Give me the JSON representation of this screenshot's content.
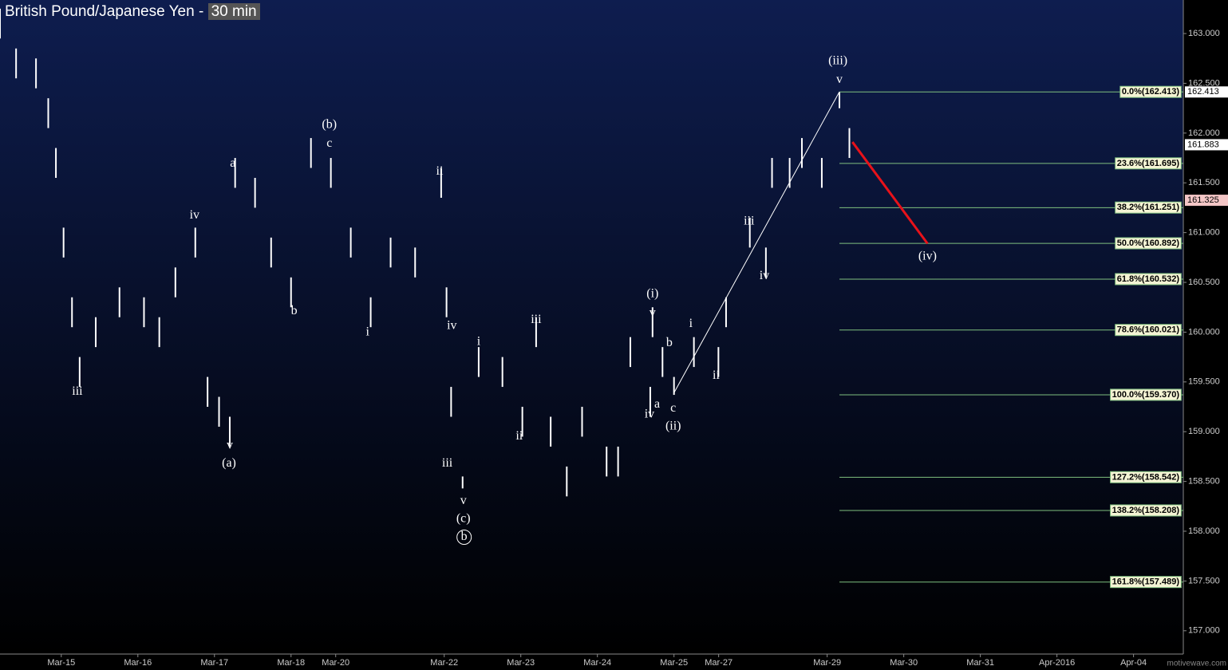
{
  "chart_data": {
    "type": "ohlc",
    "title": "British Pound/Japanese Yen",
    "separator": "-",
    "interval": "30 min",
    "color": "#ffffff",
    "x": [
      0.2,
      0.41,
      0.67,
      0.83,
      0.93,
      1.03,
      1.14,
      1.24,
      1.45,
      1.76,
      2.08,
      2.28,
      2.49,
      2.75,
      2.91,
      3.06,
      3.2,
      3.27,
      3.53,
      3.74,
      4.0,
      4.26,
      4.52,
      4.78,
      5.04,
      5.3,
      5.62,
      5.96,
      6.03,
      6.09,
      6.24,
      6.45,
      6.76,
      7.02,
      7.2,
      7.39,
      7.6,
      7.8,
      8.12,
      8.27,
      8.43,
      8.69,
      8.72,
      8.85,
      9.0,
      9.26,
      9.58,
      9.68,
      9.99,
      10.2,
      10.28,
      10.51,
      10.67,
      10.93,
      11.16,
      11.29
    ],
    "high": [
      163.25,
      162.85,
      162.75,
      162.35,
      161.85,
      161.05,
      160.35,
      159.75,
      160.15,
      160.45,
      160.35,
      160.15,
      160.65,
      161.05,
      159.55,
      159.35,
      159.15,
      161.75,
      161.55,
      160.95,
      160.55,
      161.95,
      161.75,
      161.05,
      160.35,
      160.95,
      160.85,
      161.65,
      160.45,
      159.45,
      158.55,
      159.85,
      159.75,
      159.25,
      160.15,
      159.15,
      158.65,
      159.25,
      158.85,
      158.85,
      159.95,
      159.45,
      160.25,
      159.85,
      159.55,
      159.95,
      159.85,
      160.35,
      161.15,
      160.85,
      161.75,
      161.75,
      161.95,
      161.75,
      162.41,
      162.05
    ],
    "low": [
      162.95,
      162.55,
      162.45,
      162.05,
      161.55,
      160.75,
      160.05,
      159.45,
      159.85,
      160.15,
      160.05,
      159.85,
      160.35,
      160.75,
      159.25,
      159.05,
      158.85,
      161.45,
      161.25,
      160.65,
      160.25,
      161.65,
      161.45,
      160.75,
      160.05,
      160.65,
      160.55,
      161.35,
      160.15,
      159.15,
      158.43,
      159.55,
      159.45,
      158.95,
      159.85,
      158.85,
      158.35,
      158.95,
      158.55,
      158.55,
      159.65,
      159.15,
      159.95,
      159.55,
      159.37,
      159.65,
      159.55,
      160.05,
      160.85,
      160.55,
      161.45,
      161.45,
      161.65,
      161.45,
      162.25,
      161.75
    ],
    "xlim": [
      0.2,
      15.65
    ],
    "xticks": [
      {
        "value": 1,
        "label": "Mar-15"
      },
      {
        "value": 2,
        "label": "Mar-16"
      },
      {
        "value": 3,
        "label": "Mar-17"
      },
      {
        "value": 4,
        "label": "Mar-18"
      },
      {
        "value": 4.583,
        "label": "Mar-20"
      },
      {
        "value": 6,
        "label": "Mar-22"
      },
      {
        "value": 7,
        "label": "Mar-23"
      },
      {
        "value": 8,
        "label": "Mar-24"
      },
      {
        "value": 9,
        "label": "Mar-25"
      },
      {
        "value": 9.583,
        "label": "Mar-27"
      },
      {
        "value": 11,
        "label": "Mar-29"
      },
      {
        "value": 12,
        "label": "Mar-30"
      },
      {
        "value": 13,
        "label": "Mar-31"
      },
      {
        "value": 14,
        "label": "Apr-2016"
      },
      {
        "value": 15,
        "label": "Apr-04"
      }
    ],
    "ylim": [
      156.766,
      163.337
    ],
    "yticks": [
      {
        "value": 157,
        "label": "157.000"
      },
      {
        "value": 157.5,
        "label": "157.500"
      },
      {
        "value": 158,
        "label": "158.000"
      },
      {
        "value": 158.5,
        "label": "158.500"
      },
      {
        "value": 159,
        "label": "159.000"
      },
      {
        "value": 159.5,
        "label": "159.500"
      },
      {
        "value": 160,
        "label": "160.000"
      },
      {
        "value": 160.5,
        "label": "160.500"
      },
      {
        "value": 161,
        "label": "161.000"
      },
      {
        "value": 161.5,
        "label": "161.500"
      },
      {
        "value": 162,
        "label": "162.000"
      },
      {
        "value": 162.5,
        "label": "162.500"
      },
      {
        "value": 163,
        "label": "163.000"
      }
    ],
    "fib_color": "#7fbf7f",
    "fib_start": 11.16,
    "fib_levels": [
      {
        "value": 162.413,
        "label": "0.0%(162.413)"
      },
      {
        "value": 161.695,
        "label": "23.6%(161.695)"
      },
      {
        "value": 161.251,
        "label": "38.2%(161.251)"
      },
      {
        "value": 160.892,
        "label": "50.0%(160.892)"
      },
      {
        "value": 160.532,
        "label": "61.8%(160.532)"
      },
      {
        "value": 160.021,
        "label": "78.6%(160.021)"
      },
      {
        "value": 159.37,
        "label": "100.0%(159.370)"
      },
      {
        "value": 158.542,
        "label": "127.2%(158.542)"
      },
      {
        "value": 158.208,
        "label": "138.2%(158.208)"
      },
      {
        "value": 157.489,
        "label": "161.8%(157.489)"
      }
    ],
    "price_tags": [
      {
        "value": 162.413,
        "color": "#ffffff"
      },
      {
        "value": 161.883,
        "color": "#ffffff"
      },
      {
        "value": 161.325,
        "color": "#f4c6c6"
      }
    ],
    "trend_lines": [
      {
        "x": [
          9.0,
          11.16
        ],
        "y": [
          159.39,
          162.415
        ],
        "color": "#ffffff"
      },
      {
        "x": [
          11.33,
          12.31
        ],
        "y": [
          161.91,
          160.89
        ],
        "color": "#e8121a"
      }
    ],
    "wave_labels": [
      {
        "text": "(iii)",
        "x": 11.14,
        "y": 162.72
      },
      {
        "text": "v",
        "x": 11.16,
        "y": 162.535
      },
      {
        "text": "(b)",
        "x": 4.5,
        "y": 162.08
      },
      {
        "text": "c",
        "x": 4.5,
        "y": 161.89
      },
      {
        "text": "a",
        "x": 3.24,
        "y": 161.69
      },
      {
        "text": "iv",
        "x": 2.74,
        "y": 161.17
      },
      {
        "text": "ii",
        "x": 5.94,
        "y": 161.61
      },
      {
        "text": "iii",
        "x": 1.21,
        "y": 159.4
      },
      {
        "text": "v",
        "x": 3.2,
        "y": 158.86
      },
      {
        "text": "(a)",
        "x": 3.19,
        "y": 158.68
      },
      {
        "text": "b",
        "x": 4.04,
        "y": 160.21
      },
      {
        "text": "i",
        "x": 5.0,
        "y": 159.995
      },
      {
        "text": "iv",
        "x": 6.1,
        "y": 160.06
      },
      {
        "text": "i",
        "x": 6.45,
        "y": 159.9
      },
      {
        "text": "iii",
        "x": 7.2,
        "y": 160.12
      },
      {
        "text": "ii",
        "x": 6.98,
        "y": 158.95
      },
      {
        "text": "iii",
        "x": 6.04,
        "y": 158.68
      },
      {
        "text": "v",
        "x": 6.25,
        "y": 158.3
      },
      {
        "text": "(c)",
        "x": 6.25,
        "y": 158.12
      },
      {
        "text": "b",
        "x": 6.26,
        "y": 157.94,
        "circled": true
      },
      {
        "text": "(i)",
        "x": 8.72,
        "y": 160.38
      },
      {
        "text": "v",
        "x": 8.72,
        "y": 160.19
      },
      {
        "text": "b",
        "x": 8.94,
        "y": 159.89
      },
      {
        "text": "i",
        "x": 9.22,
        "y": 160.08
      },
      {
        "text": "a",
        "x": 8.78,
        "y": 159.27
      },
      {
        "text": "iv",
        "x": 8.68,
        "y": 159.17
      },
      {
        "text": "c",
        "x": 8.99,
        "y": 159.23
      },
      {
        "text": "(ii)",
        "x": 8.99,
        "y": 159.05
      },
      {
        "text": "ii",
        "x": 9.55,
        "y": 159.56
      },
      {
        "text": "iii",
        "x": 9.98,
        "y": 161.11
      },
      {
        "text": "iv",
        "x": 10.18,
        "y": 160.56
      },
      {
        "text": "(iv)",
        "x": 12.31,
        "y": 160.76
      }
    ],
    "watermark": "motivewave.com"
  }
}
